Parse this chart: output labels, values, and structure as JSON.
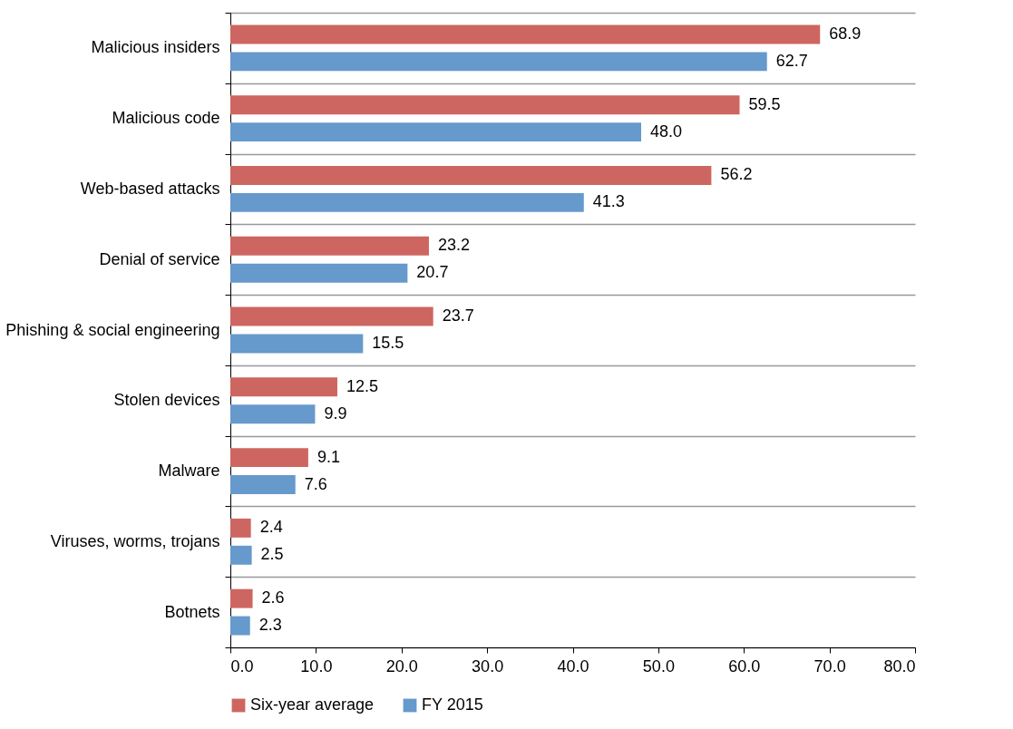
{
  "chart_data": {
    "type": "bar",
    "orientation": "horizontal",
    "categories": [
      "Malicious insiders",
      "Malicious code",
      "Web-based attacks",
      "Denial of service",
      "Phishing & social engineering",
      "Stolen devices",
      "Malware",
      "Viruses, worms, trojans",
      "Botnets"
    ],
    "series": [
      {
        "name": "Six-year average",
        "color": "#cd6661",
        "values": [
          68.9,
          59.5,
          56.2,
          23.2,
          23.7,
          12.5,
          9.1,
          2.4,
          2.6
        ],
        "value_labels": [
          "68.9",
          "59.5",
          "56.2",
          "23.2",
          "23.7",
          "12.5",
          "9.1",
          "2.4",
          "2.6"
        ]
      },
      {
        "name": "FY 2015",
        "color": "#6699cc",
        "values": [
          62.7,
          48.0,
          41.3,
          20.7,
          15.5,
          9.9,
          7.6,
          2.5,
          2.3
        ],
        "value_labels": [
          "62.7",
          "48.0",
          "41.3",
          "20.7",
          "15.5",
          "9.9",
          "7.6",
          "2.5",
          "2.3"
        ]
      }
    ],
    "xlim": [
      0,
      80
    ],
    "xticks": [
      {
        "value": 0,
        "label": "0.0"
      },
      {
        "value": 10,
        "label": "10.0"
      },
      {
        "value": 20,
        "label": "20.0"
      },
      {
        "value": 30,
        "label": "30.0"
      },
      {
        "value": 40,
        "label": "40.0"
      },
      {
        "value": 50,
        "label": "50.0"
      },
      {
        "value": 60,
        "label": "60.0"
      },
      {
        "value": 70,
        "label": "70.0"
      },
      {
        "value": 80,
        "label": "80.0"
      }
    ],
    "grid": "y",
    "legend": "bottom"
  }
}
